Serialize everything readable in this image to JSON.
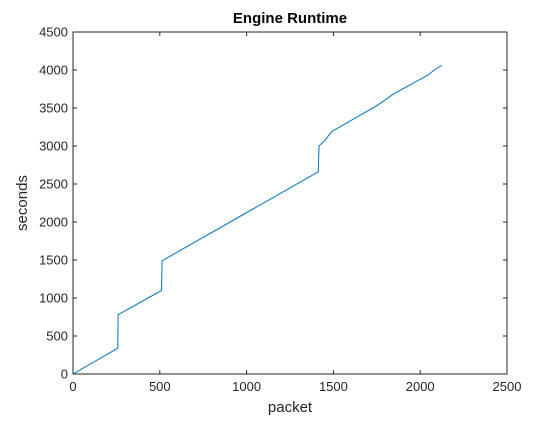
{
  "chart_data": {
    "type": "line",
    "title": "Engine Runtime",
    "xlabel": "packet",
    "ylabel": "seconds",
    "xlim": [
      0,
      2500
    ],
    "ylim": [
      0,
      4500
    ],
    "xticks": [
      0,
      500,
      1000,
      1500,
      2000,
      2500
    ],
    "yticks": [
      0,
      500,
      1000,
      1500,
      2000,
      2500,
      3000,
      3500,
      4000,
      4500
    ],
    "xtick_labels": [
      "0",
      "500",
      "1000",
      "1500",
      "2000",
      "2500"
    ],
    "ytick_labels": [
      "0",
      "500",
      "1000",
      "1500",
      "2000",
      "2500",
      "3000",
      "3500",
      "4000",
      "4500"
    ],
    "grid": false,
    "box": true,
    "series": [
      {
        "color": "#0072BD",
        "points": [
          [
            0,
            0
          ],
          [
            258,
            340
          ],
          [
            260,
            780
          ],
          [
            510,
            1100
          ],
          [
            513,
            1490
          ],
          [
            1413,
            2660
          ],
          [
            1417,
            3000
          ],
          [
            1450,
            3070
          ],
          [
            1490,
            3190
          ],
          [
            1750,
            3530
          ],
          [
            1850,
            3690
          ],
          [
            2050,
            3940
          ],
          [
            2080,
            4000
          ],
          [
            2125,
            4060
          ]
        ]
      }
    ]
  }
}
